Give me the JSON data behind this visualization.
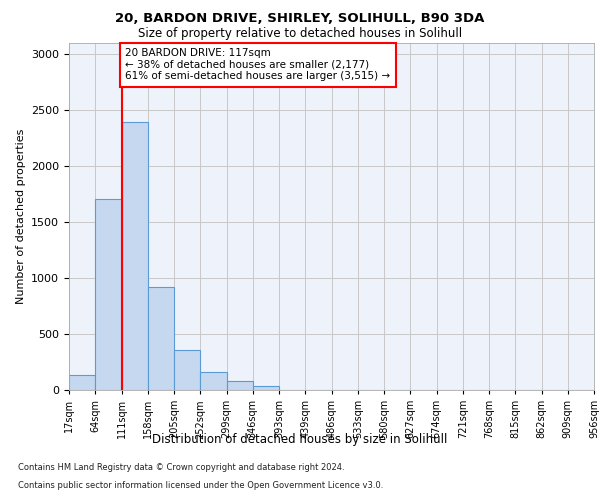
{
  "title1": "20, BARDON DRIVE, SHIRLEY, SOLIHULL, B90 3DA",
  "title2": "Size of property relative to detached houses in Solihull",
  "xlabel": "Distribution of detached houses by size in Solihull",
  "ylabel": "Number of detached properties",
  "bin_labels": [
    "17sqm",
    "64sqm",
    "111sqm",
    "158sqm",
    "205sqm",
    "252sqm",
    "299sqm",
    "346sqm",
    "393sqm",
    "439sqm",
    "486sqm",
    "533sqm",
    "580sqm",
    "627sqm",
    "674sqm",
    "721sqm",
    "768sqm",
    "815sqm",
    "862sqm",
    "909sqm",
    "956sqm"
  ],
  "bar_values": [
    130,
    1700,
    2390,
    920,
    355,
    160,
    80,
    35,
    0,
    0,
    0,
    0,
    0,
    0,
    0,
    0,
    0,
    0,
    0,
    0
  ],
  "bar_color": "#c5d8f0",
  "bar_edge_color": "#5b9bd5",
  "grid_color": "#c8c8c8",
  "background_color": "#eef2fb",
  "red_line_bin": 2,
  "red_line_color": "red",
  "annotation_text": "20 BARDON DRIVE: 117sqm\n← 38% of detached houses are smaller (2,177)\n61% of semi-detached houses are larger (3,515) →",
  "annotation_box_color": "red",
  "ylim": [
    0,
    3100
  ],
  "yticks": [
    0,
    500,
    1000,
    1500,
    2000,
    2500,
    3000
  ],
  "footer1": "Contains HM Land Registry data © Crown copyright and database right 2024.",
  "footer2": "Contains public sector information licensed under the Open Government Licence v3.0."
}
